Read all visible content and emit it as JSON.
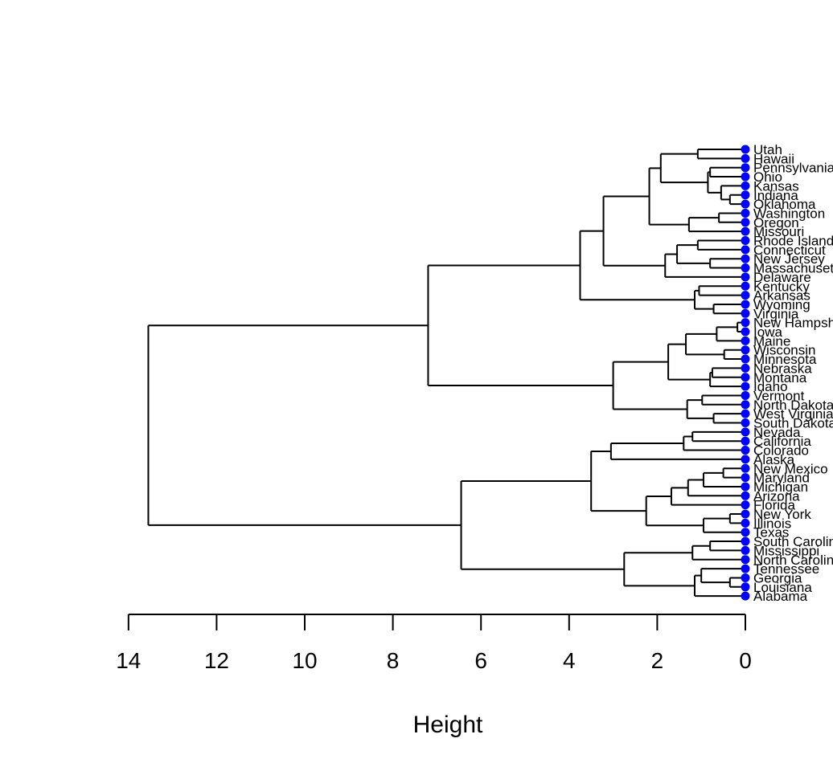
{
  "chart_data": {
    "type": "dendrogram",
    "orientation": "horizontal",
    "xlabel": "Height",
    "xlim": [
      14,
      0
    ],
    "ticks": [
      14,
      12,
      10,
      8,
      6,
      4,
      2,
      0
    ],
    "leaf_marker_color": "#0000ff",
    "leaves": [
      "Utah",
      "Hawaii",
      "Pennsylvania",
      "Ohio",
      "Kansas",
      "Indiana",
      "Oklahoma",
      "Washington",
      "Oregon",
      "Missouri",
      "Rhode Island",
      "Connecticut",
      "New Jersey",
      "Massachusetts",
      "Delaware",
      "Kentucky",
      "Arkansas",
      "Wyoming",
      "Virginia",
      "New Hampshire",
      "Iowa",
      "Maine",
      "Wisconsin",
      "Minnesota",
      "Nebraska",
      "Montana",
      "Idaho",
      "Vermont",
      "North Dakota",
      "West Virginia",
      "South Dakota",
      "Nevada",
      "California",
      "Colorado",
      "Alaska",
      "New Mexico",
      "Maryland",
      "Michigan",
      "Arizona",
      "Florida",
      "New York",
      "Illinois",
      "Texas",
      "South Carolina",
      "Mississippi",
      "North Carolina",
      "Tennessee",
      "Georgia",
      "Louisiana",
      "Alabama"
    ],
    "merges": [
      {
        "left": "Utah",
        "right": "Hawaii",
        "height": 1.08
      },
      {
        "left": "Indiana",
        "right": "Oklahoma",
        "height": 0.35
      },
      {
        "left": "Kansas",
        "right": {
          "left": "Indiana",
          "right": "Oklahoma"
        },
        "height": 0.55
      },
      {
        "left": "Pennsylvania",
        "right": "Ohio",
        "height": 0.8
      },
      {
        "left": {
          "left": "Pennsylvania",
          "right": "Ohio"
        },
        "right": {
          "left": "Kansas",
          "right": {
            "left": "Indiana",
            "right": "Oklahoma"
          }
        },
        "height": 0.85
      },
      {
        "left": {
          "left": "Utah",
          "right": "Hawaii"
        },
        "right": "Pennsylvania-Oklahoma group",
        "height": 1.92
      },
      {
        "left": "Washington",
        "right": "Oregon",
        "height": 0.6
      },
      {
        "left": {
          "left": "Washington",
          "right": "Oregon"
        },
        "right": "Missouri",
        "height": 1.28
      },
      {
        "left": "Utah-Oklahoma group",
        "right": "Washington-Missouri group",
        "height": 2.18
      },
      {
        "left": "Rhode Island",
        "right": "Connecticut",
        "height": 1.08
      },
      {
        "left": "New Jersey",
        "right": "Massachusetts",
        "height": 0.8
      },
      {
        "left": "Rhode Island-Connecticut",
        "right": "New Jersey-Massachusetts",
        "height": 1.55
      },
      {
        "left": "Rhode Island-Massachusetts",
        "right": "Delaware",
        "height": 1.82
      },
      {
        "left": "Utah-Missouri group",
        "right": "Rhode Island-Delaware group",
        "height": 3.22
      },
      {
        "left": "Kentucky",
        "right": "Arkansas",
        "height": 1.05
      },
      {
        "left": "Wyoming",
        "right": "Virginia",
        "height": 0.72
      },
      {
        "left": "Kentucky-Arkansas",
        "right": "Wyoming-Virginia",
        "height": 1.15
      },
      {
        "left": "Utah-Delaware group",
        "right": "Kentucky-Virginia group",
        "height": 3.75
      },
      {
        "left": "New Hampshire",
        "right": "Iowa",
        "height": 0.18
      },
      {
        "left": "New Hampshire-Iowa",
        "right": "Maine",
        "height": 0.65
      },
      {
        "left": "Wisconsin",
        "right": "Minnesota",
        "height": 0.48
      },
      {
        "left": "New Hampshire-Maine",
        "right": "Wisconsin-Minnesota",
        "height": 1.35
      },
      {
        "left": "Nebraska",
        "right": "Montana",
        "height": 0.75
      },
      {
        "left": "Nebraska-Montana",
        "right": "Idaho",
        "height": 0.8
      },
      {
        "left": "New Hampshire-Minnesota",
        "right": "Nebraska-Idaho",
        "height": 1.75
      },
      {
        "left": "Vermont",
        "right": "North Dakota",
        "height": 0.98
      },
      {
        "left": "West Virginia",
        "right": "South Dakota",
        "height": 0.72
      },
      {
        "left": "Vermont-North Dakota",
        "right": "West Virginia-South Dakota",
        "height": 1.32
      },
      {
        "left": "New Hampshire-Idaho",
        "right": "Vermont-South Dakota",
        "height": 3.0
      },
      {
        "left": "Utah-Virginia group",
        "right": "New Hampshire-South Dakota group",
        "height": 7.2
      },
      {
        "left": "Nevada",
        "right": "California",
        "height": 1.2
      },
      {
        "left": "Nevada-California",
        "right": "Colorado",
        "height": 1.4
      },
      {
        "left": "Nevada-Colorado",
        "right": "Alaska",
        "height": 3.05
      },
      {
        "left": "New Mexico",
        "right": "Maryland",
        "height": 0.5
      },
      {
        "left": "New Mexico-Maryland",
        "right": "Michigan",
        "height": 0.95
      },
      {
        "left": "New Mexico-Michigan",
        "right": "Arizona",
        "height": 1.3
      },
      {
        "left": "New Mexico-Arizona",
        "right": "Florida",
        "height": 1.68
      },
      {
        "left": "New York",
        "right": "Illinois",
        "height": 0.35
      },
      {
        "left": "New York-Illinois",
        "right": "Texas",
        "height": 0.95
      },
      {
        "left": "New Mexico-Florida",
        "right": "New York-Texas",
        "height": 2.25
      },
      {
        "left": "Nevada-Alaska",
        "right": "New Mexico-Texas",
        "height": 3.5
      },
      {
        "left": "South Carolina",
        "right": "Mississippi",
        "height": 0.8
      },
      {
        "left": "South Carolina-Mississippi",
        "right": "North Carolina",
        "height": 1.2
      },
      {
        "left": "Georgia",
        "right": "Louisiana",
        "height": 0.35
      },
      {
        "left": "Tennessee",
        "right": "Georgia-Louisiana",
        "height": 1.0
      },
      {
        "left": "Tennessee-Louisiana",
        "right": "Alabama",
        "height": 1.15
      },
      {
        "left": "South Carolina-North Carolina",
        "right": "Tennessee-Alabama",
        "height": 2.75
      },
      {
        "left": "Nevada-Texas group",
        "right": "South Carolina-Alabama group",
        "height": 6.45
      },
      {
        "left": "Utah-South Dakota group",
        "right": "Nevada-Alabama group",
        "height": 13.55
      }
    ]
  }
}
